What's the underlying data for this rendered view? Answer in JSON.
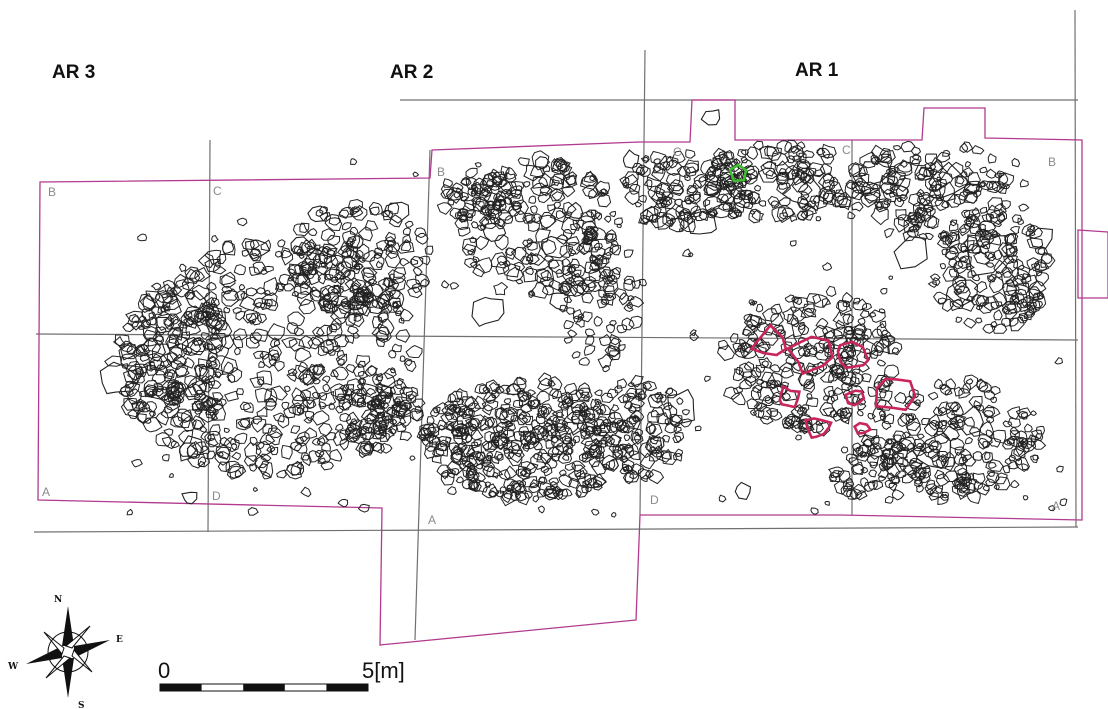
{
  "areas": [
    {
      "id": "ar3",
      "label": "AR 3"
    },
    {
      "id": "ar2",
      "label": "AR 2"
    },
    {
      "id": "ar1",
      "label": "AR 1"
    }
  ],
  "corners": {
    "ar3": {
      "a": "A",
      "b": "B",
      "c": "C",
      "d": "D"
    },
    "ar2": {
      "a": "A",
      "b": "B"
    },
    "ar1": {
      "a": "A",
      "b": "B",
      "c": "C",
      "c2": "C",
      "d": "D"
    }
  },
  "compass": {
    "n": "N",
    "s": "S",
    "e": "E",
    "w": "W"
  },
  "scale": {
    "start_label": "0",
    "end_label": "5[m]",
    "length_m": 5,
    "segments": 5
  },
  "colors": {
    "trench_outline": "#b23a8f",
    "grid_lines": "#707070",
    "stones": "#222222",
    "highlight_stones": "#c8265a",
    "marked_stone": "#3fbf2f"
  }
}
